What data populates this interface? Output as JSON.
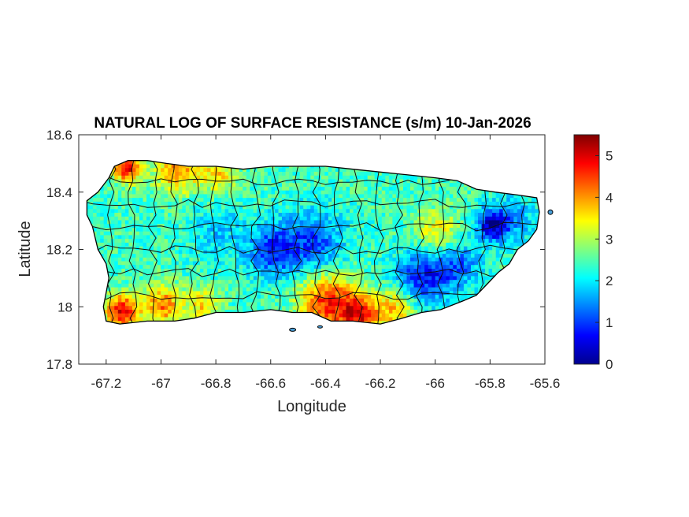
{
  "chart_data": {
    "type": "heatmap",
    "title": "NATURAL LOG OF SURFACE RESISTANCE (s/m) 10-Jan-2026",
    "xlabel": "Longitude",
    "ylabel": "Latitude",
    "xlim": [
      -67.3,
      -65.6
    ],
    "ylim": [
      17.8,
      18.6
    ],
    "xticks": [
      -67.2,
      -67,
      -66.8,
      -66.6,
      -66.4,
      -66.2,
      -66,
      -65.8,
      -65.6
    ],
    "xtick_labels": [
      "-67.2",
      "-67",
      "-66.8",
      "-66.6",
      "-66.4",
      "-66.2",
      "-66",
      "-65.8",
      "-65.6"
    ],
    "yticks": [
      17.8,
      18,
      18.2,
      18.4,
      18.6
    ],
    "ytick_labels": [
      "17.8",
      "18",
      "18.2",
      "18.4",
      "18.6"
    ],
    "colorbar": {
      "colormap": "jet",
      "range": [
        0,
        5.5
      ],
      "ticks": [
        0,
        1,
        2,
        3,
        4,
        5
      ],
      "tick_labels": [
        "0",
        "1",
        "2",
        "3",
        "4",
        "5"
      ]
    },
    "grid": false,
    "region_outline": [
      [
        -67.27,
        18.37
      ],
      [
        -67.23,
        18.4
      ],
      [
        -67.19,
        18.45
      ],
      [
        -67.17,
        18.49
      ],
      [
        -67.12,
        18.51
      ],
      [
        -67.05,
        18.51
      ],
      [
        -66.98,
        18.5
      ],
      [
        -66.9,
        18.49
      ],
      [
        -66.8,
        18.49
      ],
      [
        -66.7,
        18.48
      ],
      [
        -66.6,
        18.49
      ],
      [
        -66.5,
        18.49
      ],
      [
        -66.4,
        18.49
      ],
      [
        -66.3,
        18.48
      ],
      [
        -66.2,
        18.47
      ],
      [
        -66.1,
        18.46
      ],
      [
        -66.0,
        18.45
      ],
      [
        -65.92,
        18.44
      ],
      [
        -65.85,
        18.41
      ],
      [
        -65.78,
        18.4
      ],
      [
        -65.7,
        18.39
      ],
      [
        -65.63,
        18.38
      ],
      [
        -65.62,
        18.33
      ],
      [
        -65.63,
        18.27
      ],
      [
        -65.66,
        18.23
      ],
      [
        -65.7,
        18.2
      ],
      [
        -65.73,
        18.15
      ],
      [
        -65.77,
        18.12
      ],
      [
        -65.8,
        18.09
      ],
      [
        -65.85,
        18.04
      ],
      [
        -65.9,
        18.02
      ],
      [
        -65.98,
        17.99
      ],
      [
        -66.05,
        17.98
      ],
      [
        -66.12,
        17.96
      ],
      [
        -66.2,
        17.94
      ],
      [
        -66.3,
        17.95
      ],
      [
        -66.38,
        17.95
      ],
      [
        -66.45,
        17.98
      ],
      [
        -66.52,
        17.98
      ],
      [
        -66.6,
        17.99
      ],
      [
        -66.7,
        17.98
      ],
      [
        -66.8,
        17.98
      ],
      [
        -66.88,
        17.96
      ],
      [
        -66.95,
        17.95
      ],
      [
        -67.05,
        17.95
      ],
      [
        -67.15,
        17.94
      ],
      [
        -67.2,
        17.95
      ],
      [
        -67.21,
        18.0
      ],
      [
        -67.2,
        18.05
      ],
      [
        -67.19,
        18.1
      ],
      [
        -67.2,
        18.15
      ],
      [
        -67.23,
        18.2
      ],
      [
        -67.25,
        18.28
      ],
      [
        -67.27,
        18.32
      ]
    ],
    "approximate_value_field": {
      "background_value": 2.4,
      "features": [
        {
          "lon": -67.13,
          "lat": 18.48,
          "value": 5.0,
          "radius": 0.05
        },
        {
          "lon": -66.95,
          "lat": 18.47,
          "value": 4.0,
          "radius": 0.08
        },
        {
          "lon": -66.8,
          "lat": 18.46,
          "value": 3.6,
          "radius": 0.07
        },
        {
          "lon": -67.15,
          "lat": 17.98,
          "value": 4.9,
          "radius": 0.06
        },
        {
          "lon": -67.0,
          "lat": 18.0,
          "value": 4.2,
          "radius": 0.07
        },
        {
          "lon": -66.85,
          "lat": 18.0,
          "value": 3.6,
          "radius": 0.06
        },
        {
          "lon": -66.4,
          "lat": 18.01,
          "value": 4.6,
          "radius": 0.1
        },
        {
          "lon": -66.28,
          "lat": 17.97,
          "value": 4.6,
          "radius": 0.07
        },
        {
          "lon": -66.15,
          "lat": 17.99,
          "value": 3.8,
          "radius": 0.07
        },
        {
          "lon": -66.0,
          "lat": 18.25,
          "value": 3.5,
          "radius": 0.08
        },
        {
          "lon": -66.6,
          "lat": 18.19,
          "value": 0.9,
          "radius": 0.09
        },
        {
          "lon": -66.45,
          "lat": 18.22,
          "value": 1.1,
          "radius": 0.11
        },
        {
          "lon": -66.05,
          "lat": 18.1,
          "value": 0.8,
          "radius": 0.1
        },
        {
          "lon": -65.92,
          "lat": 18.14,
          "value": 1.3,
          "radius": 0.08
        },
        {
          "lon": -65.8,
          "lat": 18.28,
          "value": 0.5,
          "radius": 0.06
        },
        {
          "lon": -65.72,
          "lat": 18.3,
          "value": 1.6,
          "radius": 0.08
        },
        {
          "lon": -66.8,
          "lat": 18.25,
          "value": 1.8,
          "radius": 0.1
        }
      ]
    }
  }
}
